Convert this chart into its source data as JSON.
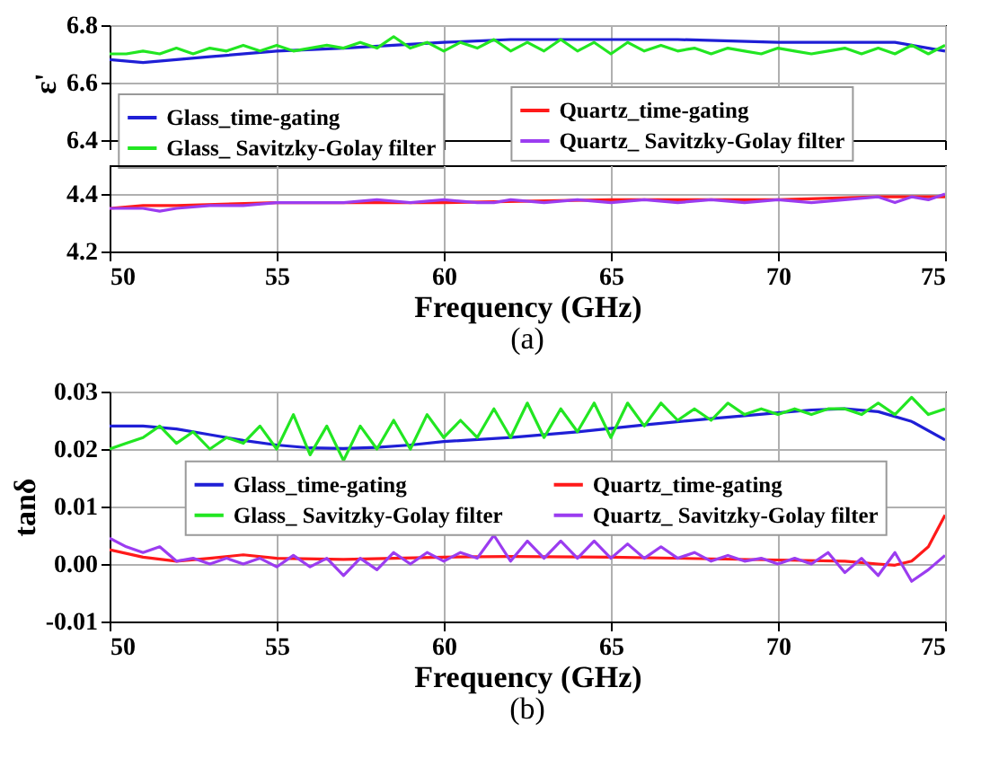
{
  "chart_data": [
    {
      "type": "line",
      "ylabel": "ε'",
      "xlim": [
        50,
        75
      ],
      "ylim": [
        6.4,
        6.8
      ],
      "tick_labels": "y",
      "xticks": [
        50,
        55,
        60,
        65,
        70,
        75
      ],
      "yticks": [
        6.4,
        6.6,
        6.8
      ],
      "grid": true,
      "legend": "bottom left",
      "series": [
        {
          "name": "Glass_time-gating",
          "color": "#1f1fd6",
          "x": [
            50,
            51,
            52,
            53,
            55,
            57,
            60,
            62,
            65,
            67,
            70,
            72,
            73.5,
            74.5,
            75
          ],
          "values": [
            6.68,
            6.67,
            6.68,
            6.69,
            6.71,
            6.72,
            6.74,
            6.75,
            6.75,
            6.75,
            6.74,
            6.74,
            6.74,
            6.72,
            6.71
          ]
        },
        {
          "name": "Glass_ Savitzky-Golay filter",
          "color": "#22e622",
          "x": [
            50,
            50.5,
            51,
            51.5,
            52,
            52.5,
            53,
            53.5,
            54,
            54.5,
            55,
            55.5,
            56,
            56.5,
            57,
            57.5,
            58,
            58.5,
            59,
            59.5,
            60,
            60.5,
            61,
            61.5,
            62,
            62.5,
            63,
            63.5,
            64,
            64.5,
            65,
            65.5,
            66,
            66.5,
            67,
            67.5,
            68,
            68.5,
            69,
            69.5,
            70,
            70.5,
            71,
            71.5,
            72,
            72.5,
            73,
            73.5,
            74,
            74.5,
            75
          ],
          "values": [
            6.7,
            6.7,
            6.71,
            6.7,
            6.72,
            6.7,
            6.72,
            6.71,
            6.73,
            6.71,
            6.73,
            6.71,
            6.72,
            6.73,
            6.72,
            6.74,
            6.72,
            6.76,
            6.72,
            6.74,
            6.71,
            6.74,
            6.72,
            6.75,
            6.71,
            6.74,
            6.71,
            6.75,
            6.71,
            6.74,
            6.7,
            6.74,
            6.71,
            6.73,
            6.71,
            6.72,
            6.7,
            6.72,
            6.71,
            6.7,
            6.72,
            6.71,
            6.7,
            6.71,
            6.72,
            6.7,
            6.72,
            6.7,
            6.73,
            6.7,
            6.73
          ]
        }
      ]
    },
    {
      "type": "line",
      "xlabel": "Frequency (GHz)",
      "annotations": [
        "(a)"
      ],
      "xlim": [
        50,
        75
      ],
      "ylim": [
        4.2,
        4.5
      ],
      "xticks": [
        50,
        55,
        60,
        65,
        70,
        75
      ],
      "yticks": [
        4.2,
        4.4
      ],
      "grid": true,
      "legend": "top right",
      "series": [
        {
          "name": "Quartz_time-gating",
          "color": "#ff1a1a",
          "x": [
            50,
            51,
            52,
            55,
            60,
            65,
            70,
            73,
            75
          ],
          "values": [
            4.35,
            4.36,
            4.36,
            4.37,
            4.37,
            4.38,
            4.38,
            4.39,
            4.39
          ]
        },
        {
          "name": "Quartz_ Savitzky-Golay filter",
          "color": "#9b3cf0",
          "x": [
            50,
            51,
            51.5,
            52,
            53,
            54,
            55,
            56,
            57,
            58,
            59,
            60,
            61,
            61.5,
            62,
            63,
            64,
            65,
            66,
            67,
            68,
            69,
            70,
            71,
            72,
            73,
            73.5,
            74,
            74.5,
            75
          ],
          "values": [
            4.35,
            4.35,
            4.34,
            4.35,
            4.36,
            4.36,
            4.37,
            4.37,
            4.37,
            4.38,
            4.37,
            4.38,
            4.37,
            4.37,
            4.38,
            4.37,
            4.38,
            4.37,
            4.38,
            4.37,
            4.38,
            4.37,
            4.38,
            4.37,
            4.38,
            4.39,
            4.37,
            4.39,
            4.38,
            4.4
          ]
        }
      ]
    },
    {
      "type": "line",
      "xlabel": "Frequency (GHz)",
      "ylabel": "tanδ",
      "annotations": [
        "(b)"
      ],
      "xlim": [
        50,
        75
      ],
      "ylim": [
        -0.01,
        0.03
      ],
      "xticks": [
        50,
        55,
        60,
        65,
        70,
        75
      ],
      "yticks": [
        {
          "value": -0.01,
          "label": "-0.01"
        },
        {
          "value": 0,
          "label": "0.00"
        },
        {
          "value": 0.01,
          "label": "0.01"
        },
        {
          "value": 0.02,
          "label": "0.02"
        },
        {
          "value": 0.03,
          "label": "0.03"
        }
      ],
      "grid": true,
      "legend": "center",
      "series": [
        {
          "name": "Glass_time-gating",
          "color": "#1f1fd6",
          "x": [
            50,
            51,
            52,
            53,
            54,
            55,
            56,
            57,
            58,
            59,
            60,
            62,
            64,
            66,
            68,
            70,
            71,
            72,
            73,
            74,
            75
          ],
          "values": [
            0.024,
            0.024,
            0.0235,
            0.0225,
            0.0215,
            0.0207,
            0.0202,
            0.0201,
            0.0203,
            0.0207,
            0.0213,
            0.022,
            0.023,
            0.0242,
            0.0253,
            0.0263,
            0.0268,
            0.027,
            0.0265,
            0.0248,
            0.0216
          ]
        },
        {
          "name": "Glass_ Savitzky-Golay filter",
          "color": "#22e622",
          "x": [
            50,
            50.5,
            51,
            51.5,
            52,
            52.5,
            53,
            53.5,
            54,
            54.5,
            55,
            55.5,
            56,
            56.5,
            57,
            57.5,
            58,
            58.5,
            59,
            59.5,
            60,
            60.5,
            61,
            61.5,
            62,
            62.5,
            63,
            63.5,
            64,
            64.5,
            65,
            65.5,
            66,
            66.5,
            67,
            67.5,
            68,
            68.5,
            69,
            69.5,
            70,
            70.5,
            71,
            71.5,
            72,
            72.5,
            73,
            73.5,
            74,
            74.5,
            75
          ],
          "values": [
            0.02,
            0.021,
            0.022,
            0.024,
            0.021,
            0.023,
            0.02,
            0.022,
            0.021,
            0.024,
            0.02,
            0.026,
            0.019,
            0.024,
            0.018,
            0.024,
            0.02,
            0.025,
            0.02,
            0.026,
            0.022,
            0.025,
            0.022,
            0.027,
            0.022,
            0.028,
            0.022,
            0.027,
            0.023,
            0.028,
            0.022,
            0.028,
            0.024,
            0.028,
            0.025,
            0.027,
            0.025,
            0.028,
            0.026,
            0.027,
            0.026,
            0.027,
            0.026,
            0.027,
            0.027,
            0.026,
            0.028,
            0.026,
            0.029,
            0.026,
            0.027
          ]
        },
        {
          "name": "Quartz_time-gating",
          "color": "#ff1a1a",
          "x": [
            50,
            51,
            52,
            53,
            54,
            55,
            57,
            60,
            62,
            65,
            68,
            70,
            72,
            73,
            73.5,
            74,
            74.5,
            75
          ],
          "values": [
            0.0025,
            0.0012,
            0.0005,
            0.001,
            0.0016,
            0.001,
            0.0008,
            0.0012,
            0.0013,
            0.0012,
            0.0009,
            0.0007,
            0.0005,
            0,
            -0.0002,
            0.0005,
            0.003,
            0.0085
          ]
        },
        {
          "name": "Quartz_ Savitzky-Golay filter",
          "color": "#9b3cf0",
          "x": [
            50,
            50.5,
            51,
            51.5,
            52,
            52.5,
            53,
            53.5,
            54,
            54.5,
            55,
            55.5,
            56,
            56.5,
            57,
            57.5,
            58,
            58.5,
            59,
            59.5,
            60,
            60.5,
            61,
            61.5,
            62,
            62.5,
            63,
            63.5,
            64,
            64.5,
            65,
            65.5,
            66,
            66.5,
            67,
            67.5,
            68,
            68.5,
            69,
            69.5,
            70,
            70.5,
            71,
            71.5,
            72,
            72.5,
            73,
            73.5,
            74,
            74.5,
            75
          ],
          "values": [
            0.0045,
            0.003,
            0.002,
            0.003,
            0.0005,
            0.001,
            0,
            0.001,
            0,
            0.001,
            -0.0005,
            0.0015,
            -0.0005,
            0.001,
            -0.002,
            0.001,
            -0.001,
            0.002,
            0,
            0.002,
            0.0005,
            0.002,
            0.001,
            0.005,
            0.0005,
            0.004,
            0.001,
            0.004,
            0.001,
            0.004,
            0.001,
            0.0035,
            0.001,
            0.003,
            0.001,
            0.002,
            0.0005,
            0.0015,
            0.0005,
            0.001,
            0,
            0.001,
            0,
            0.002,
            -0.0015,
            0.001,
            -0.002,
            0.002,
            -0.003,
            -0.001,
            0.0015
          ]
        }
      ]
    }
  ]
}
